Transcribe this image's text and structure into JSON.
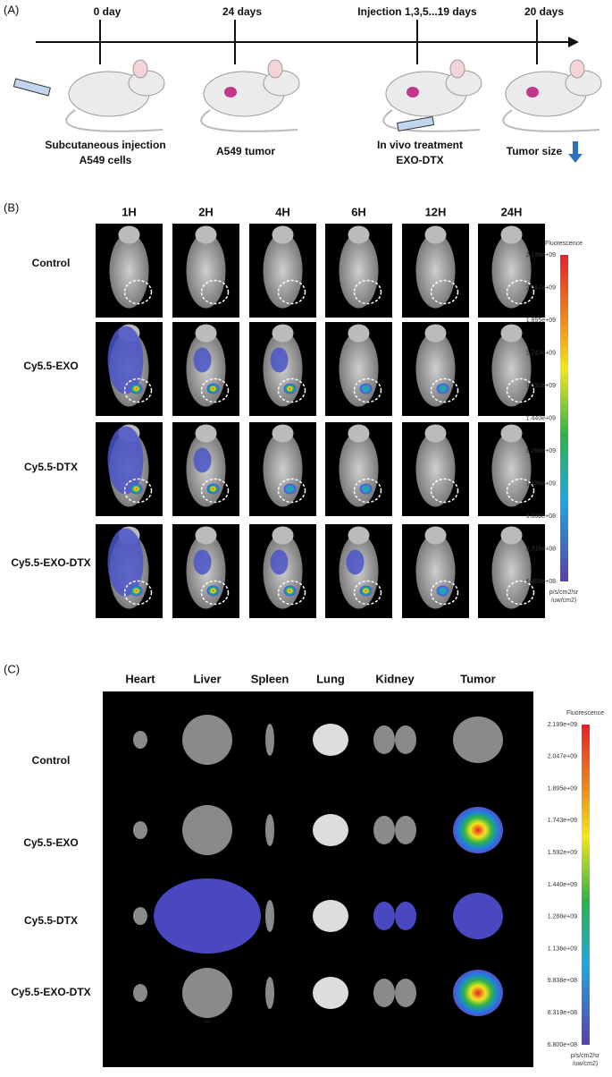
{
  "panel_a": {
    "label": "(A)",
    "steps": [
      {
        "time": "0 day",
        "caption": [
          "Subcutaneous injection",
          "A549 cells"
        ]
      },
      {
        "time": "24 days",
        "caption": [
          "A549 tumor"
        ]
      },
      {
        "time": "Injection 1,3,5...19 days",
        "caption": [
          "In vivo treatment",
          "EXO-DTX"
        ]
      },
      {
        "time": "20 days",
        "caption": [
          "Tumor size"
        ]
      }
    ]
  },
  "panel_b": {
    "label": "(B)",
    "columns": [
      "1H",
      "2H",
      "4H",
      "6H",
      "12H",
      "24H"
    ],
    "rows": [
      "Control",
      "Cy5.5-EXO",
      "Cy5.5-DTX",
      "Cy5.5-EXO-DTX"
    ],
    "colorbar": {
      "title": "Fluorescence",
      "labels": [
        "2.199e+09",
        "2.047e+09",
        "1.895e+09",
        "1.743e+09",
        "1.592e+09",
        "1.440e+09",
        "1.288e+09",
        "1.136e+09",
        "9.838e+08",
        "8.319e+08",
        "6.800e+08"
      ],
      "unit": [
        "p/s/cm2/sr",
        "/uw/cm2)"
      ]
    }
  },
  "panel_c": {
    "label": "(C)",
    "columns": [
      "Heart",
      "Liver",
      "Spleen",
      "Lung",
      "Kidney",
      "Tumor"
    ],
    "rows": [
      "Control",
      "Cy5.5-EXO",
      "Cy5.5-DTX",
      "Cy5.5-EXO-DTX"
    ],
    "colorbar": {
      "title": "Fluorescence",
      "labels": [
        "2.199e+09",
        "2.047e+09",
        "1.895e+09",
        "1.743e+09",
        "1.592e+09",
        "1.440e+09",
        "1.288e+09",
        "1.136e+09",
        "9.838e+08",
        "8.319e+08",
        "6.800e+08"
      ],
      "unit": [
        "p/s/cm2/sr",
        "/uw/cm2)"
      ]
    }
  }
}
